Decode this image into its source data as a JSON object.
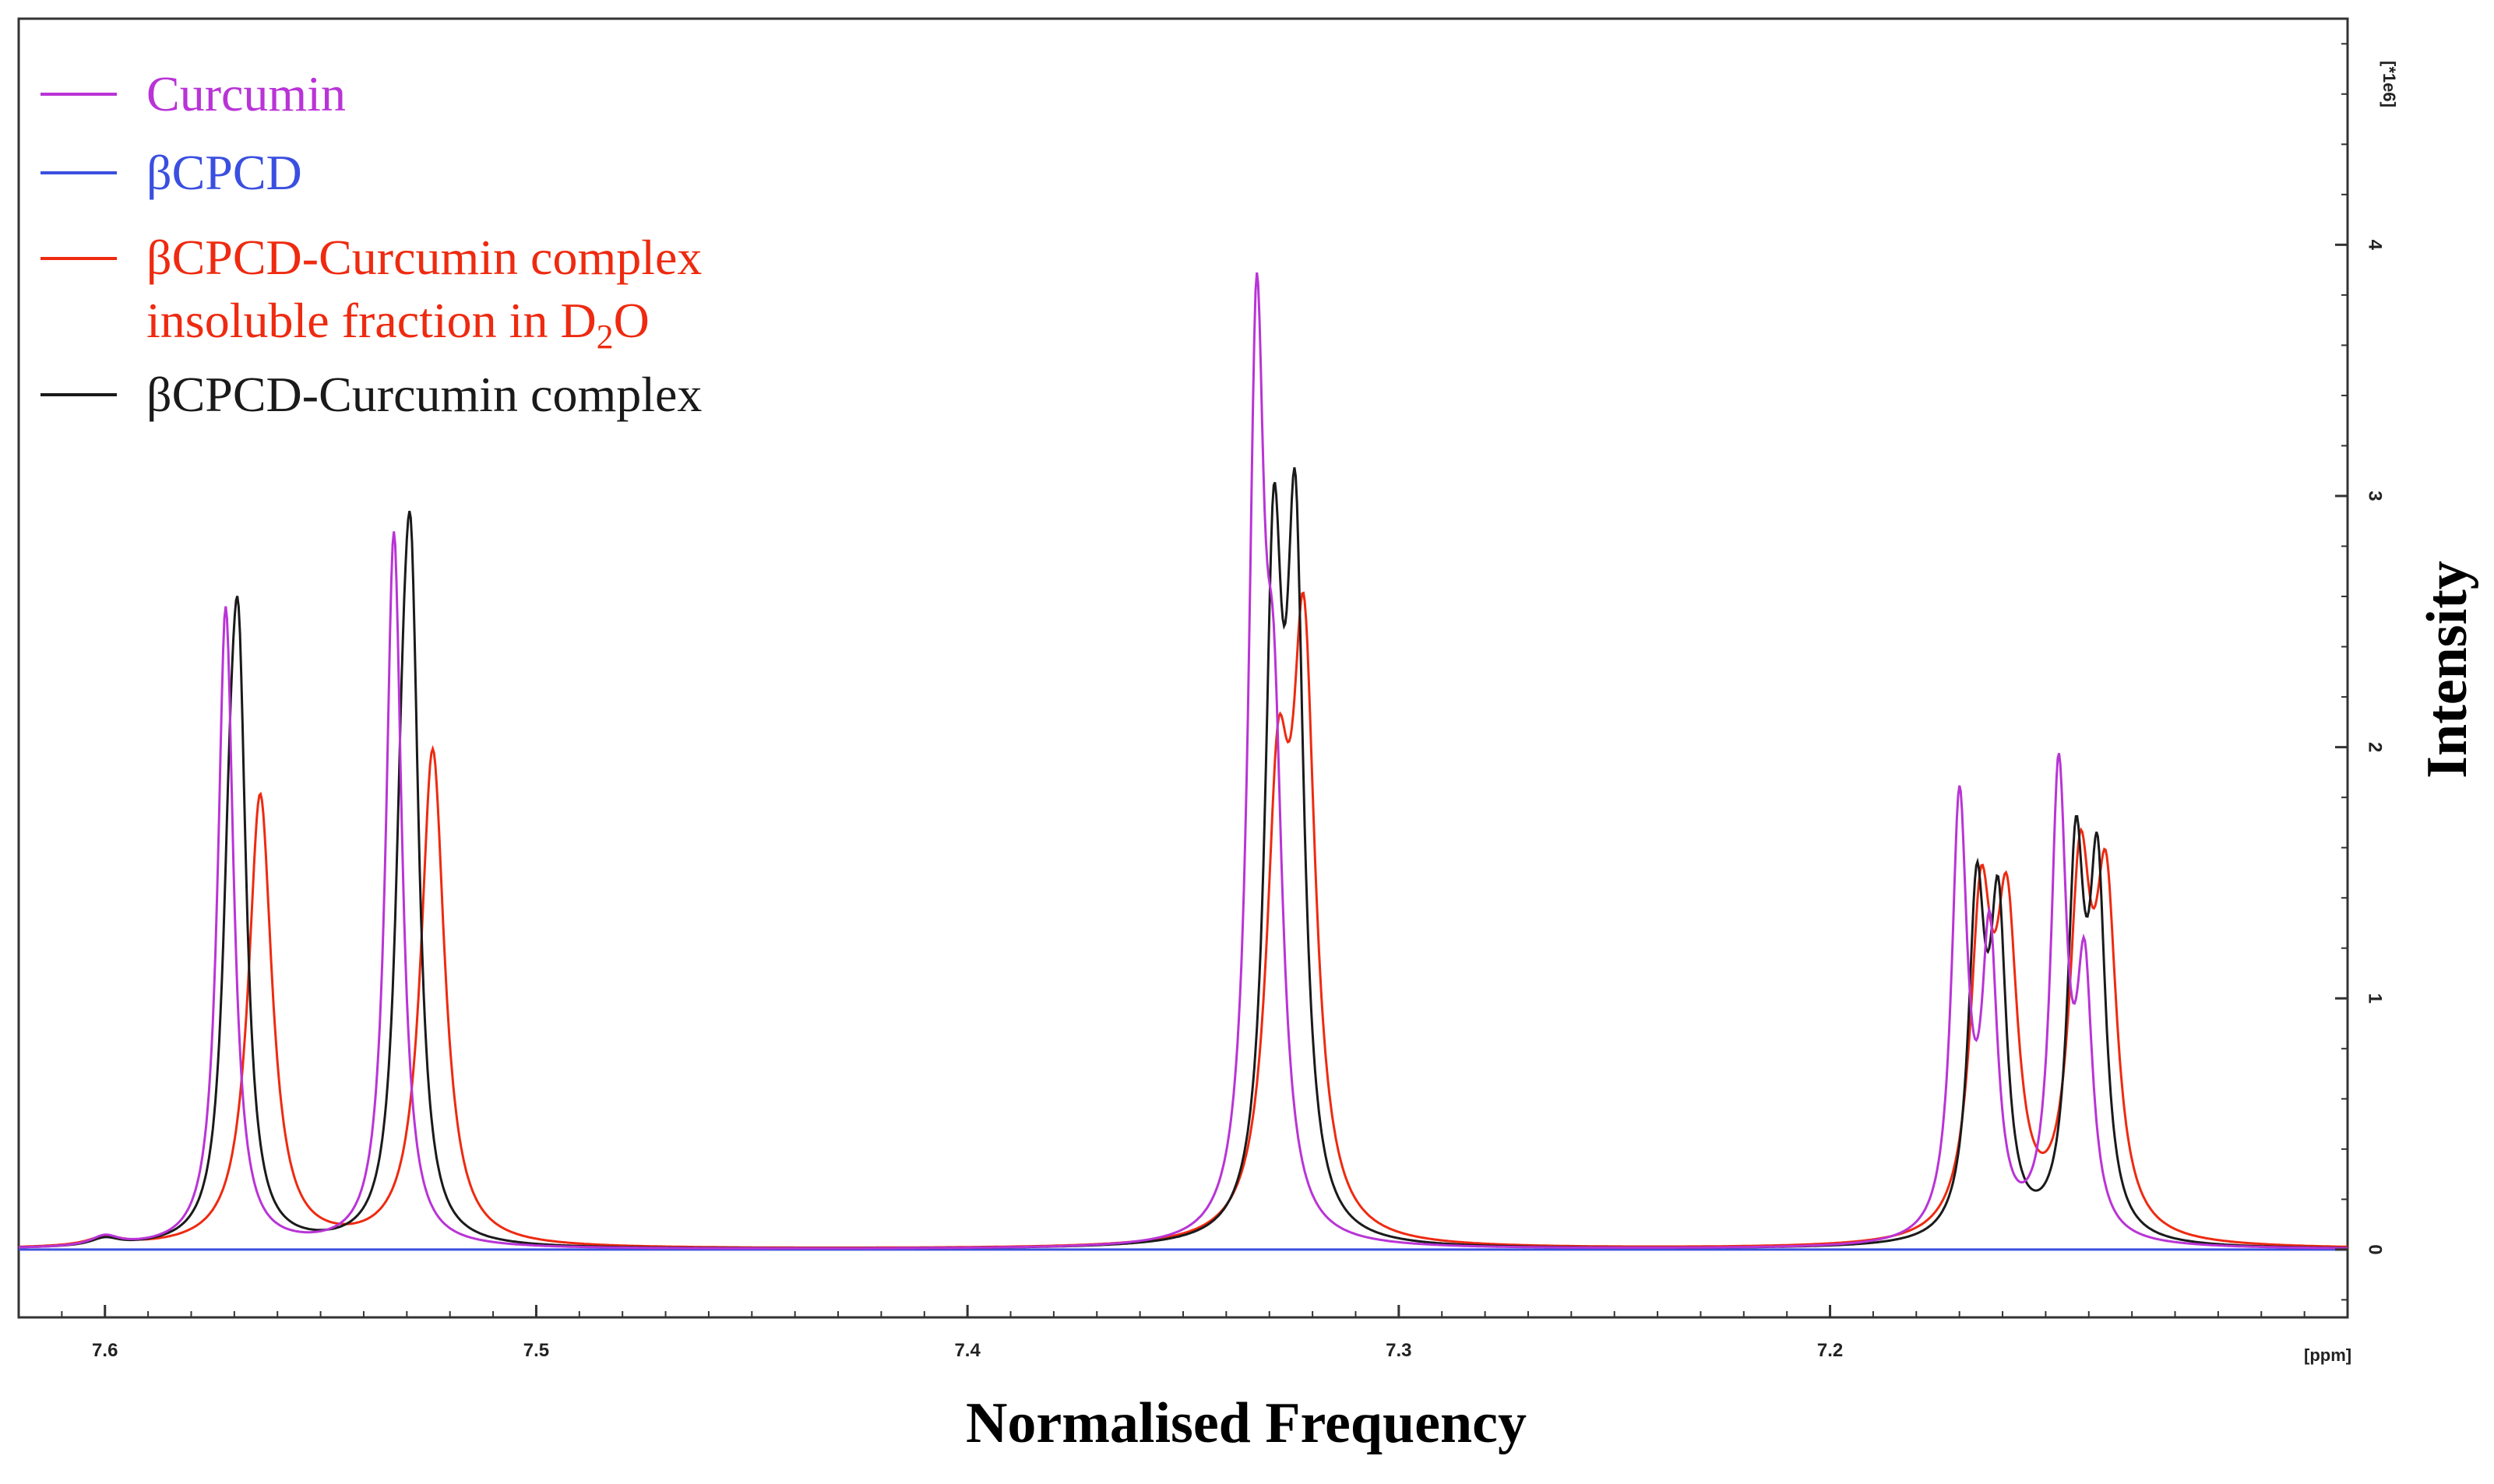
{
  "chart_data": {
    "type": "line",
    "title": "",
    "xlabel": "Normalised Frequency",
    "ylabel": "Intensity",
    "x_unit_label": "[ppm]",
    "y_unit_label": "[*1e6]",
    "xlim": [
      7.62,
      7.08
    ],
    "ylim": [
      -0.27,
      4.9
    ],
    "x_ticks": [
      {
        "value": 7.6,
        "label": "7.6"
      },
      {
        "value": 7.5,
        "label": "7.5"
      },
      {
        "value": 7.4,
        "label": "7.4"
      },
      {
        "value": 7.3,
        "label": "7.3"
      },
      {
        "value": 7.2,
        "label": "7.2"
      }
    ],
    "y_ticks": [
      {
        "value": 0,
        "label": "0"
      },
      {
        "value": 1,
        "label": "1"
      },
      {
        "value": 2,
        "label": "2"
      },
      {
        "value": 3,
        "label": "3"
      },
      {
        "value": 4,
        "label": "4"
      }
    ],
    "legend_position": "top-left",
    "series": [
      {
        "name": "Curcumin",
        "color": "#b934d6",
        "peaks": [
          {
            "x": 7.6,
            "h": 0.04,
            "w": 0.004
          },
          {
            "x": 7.572,
            "h": 2.55,
            "w": 0.0022
          },
          {
            "x": 7.533,
            "h": 2.85,
            "w": 0.0022
          },
          {
            "x": 7.333,
            "h": 3.4,
            "w": 0.0022
          },
          {
            "x": 7.329,
            "h": 1.7,
            "w": 0.0025
          },
          {
            "x": 7.17,
            "h": 1.72,
            "w": 0.0022
          },
          {
            "x": 7.163,
            "h": 1.15,
            "w": 0.0022
          },
          {
            "x": 7.147,
            "h": 1.82,
            "w": 0.0022
          },
          {
            "x": 7.141,
            "h": 1.0,
            "w": 0.0022
          }
        ]
      },
      {
        "name": "βCPCD",
        "color": "#3a4fe0",
        "peaks": []
      },
      {
        "name": "βCPCD-Curcumin complex insoluble fraction in D2O",
        "legend_lines": [
          "βCPCD-Curcumin complex",
          "insoluble fraction in D",
          "2",
          "O"
        ],
        "color": "#ee2a10",
        "peaks": [
          {
            "x": 7.6,
            "h": 0.035,
            "w": 0.005
          },
          {
            "x": 7.564,
            "h": 1.8,
            "w": 0.0033
          },
          {
            "x": 7.524,
            "h": 1.98,
            "w": 0.0033
          },
          {
            "x": 7.328,
            "h": 1.6,
            "w": 0.0032
          },
          {
            "x": 7.322,
            "h": 2.25,
            "w": 0.0032
          },
          {
            "x": 7.165,
            "h": 1.25,
            "w": 0.003
          },
          {
            "x": 7.159,
            "h": 1.18,
            "w": 0.003
          },
          {
            "x": 7.142,
            "h": 1.35,
            "w": 0.003
          },
          {
            "x": 7.136,
            "h": 1.28,
            "w": 0.003
          }
        ]
      },
      {
        "name": "βCPCD-Curcumin complex",
        "color": "#1a1a1a",
        "peaks": [
          {
            "x": 7.6,
            "h": 0.03,
            "w": 0.004
          },
          {
            "x": 7.571,
            "h": 1.0,
            "w": 0.0022
          },
          {
            "x": 7.569,
            "h": 2.0,
            "w": 0.0022
          },
          {
            "x": 7.531,
            "h": 1.15,
            "w": 0.0022
          },
          {
            "x": 7.529,
            "h": 2.25,
            "w": 0.0022
          },
          {
            "x": 7.329,
            "h": 2.55,
            "w": 0.0024
          },
          {
            "x": 7.324,
            "h": 2.62,
            "w": 0.0024
          },
          {
            "x": 7.166,
            "h": 1.3,
            "w": 0.0023
          },
          {
            "x": 7.161,
            "h": 1.22,
            "w": 0.0023
          },
          {
            "x": 7.143,
            "h": 1.45,
            "w": 0.0023
          },
          {
            "x": 7.138,
            "h": 1.38,
            "w": 0.0023
          }
        ]
      }
    ]
  }
}
